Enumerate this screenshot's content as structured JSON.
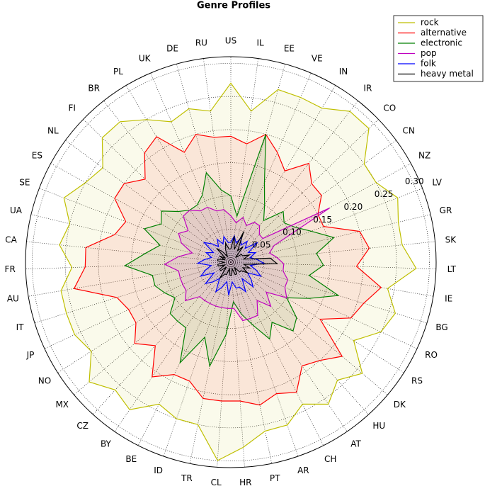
{
  "chart_data": {
    "type": "radar",
    "title": "Genre Profiles",
    "categories": [
      "US",
      "IL",
      "EE",
      "VE",
      "IN",
      "IR",
      "CO",
      "CN",
      "NZ",
      "LV",
      "GR",
      "SK",
      "LT",
      "IE",
      "BG",
      "RO",
      "RS",
      "DK",
      "HU",
      "AT",
      "CH",
      "AR",
      "PT",
      "HR",
      "CL",
      "TR",
      "ID",
      "BE",
      "BY",
      "CZ",
      "MX",
      "NO",
      "JP",
      "IT",
      "AU",
      "FR",
      "CA",
      "UA",
      "SE",
      "ES",
      "NL",
      "FI",
      "BR",
      "PL",
      "UK",
      "DE",
      "RU"
    ],
    "series": [
      {
        "name": "rock",
        "color": "#bfbf00",
        "values": [
          0.27,
          0.23,
          0.27,
          0.27,
          0.27,
          0.29,
          0.29,
          0.25,
          0.25,
          0.27,
          0.26,
          0.26,
          0.28,
          0.24,
          0.26,
          0.25,
          0.22,
          0.26,
          0.24,
          0.26,
          0.24,
          0.26,
          0.26,
          0.28,
          0.3,
          0.25,
          0.25,
          0.24,
          0.27,
          0.26,
          0.28,
          0.25,
          0.26,
          0.26,
          0.26,
          0.24,
          0.26,
          0.25,
          0.27,
          0.25,
          0.24,
          0.27,
          0.27,
          0.25,
          0.23,
          0.24,
          0.23
        ]
      },
      {
        "name": "alternative",
        "color": "#ff0000",
        "values": [
          0.19,
          0.18,
          0.2,
          0.18,
          0.16,
          0.19,
          0.17,
          0.17,
          0.15,
          0.15,
          0.2,
          0.21,
          0.19,
          0.23,
          0.21,
          0.2,
          0.16,
          0.22,
          0.2,
          0.19,
          0.22,
          0.21,
          0.22,
          0.21,
          0.21,
          0.21,
          0.19,
          0.19,
          0.21,
          0.17,
          0.19,
          0.17,
          0.17,
          0.18,
          0.24,
          0.22,
          0.22,
          0.18,
          0.17,
          0.2,
          0.2,
          0.18,
          0.21,
          0.22,
          0.18,
          0.2,
          0.19
        ]
      },
      {
        "name": "electronic",
        "color": "#008000",
        "values": [
          0.1,
          0.07,
          0.2,
          0.13,
          0.1,
          0.08,
          0.11,
          0.1,
          0.11,
          0.13,
          0.16,
          0.13,
          0.14,
          0.12,
          0.17,
          0.13,
          0.1,
          0.13,
          0.14,
          0.11,
          0.13,
          0.1,
          0.08,
          0.06,
          0.11,
          0.16,
          0.12,
          0.17,
          0.12,
          0.12,
          0.12,
          0.1,
          0.11,
          0.12,
          0.12,
          0.16,
          0.13,
          0.11,
          0.14,
          0.12,
          0.13,
          0.11,
          0.1,
          0.1,
          0.11,
          0.14,
          0.11
        ]
      },
      {
        "name": "pop",
        "color": "#bf00bf",
        "values": [
          0.07,
          0.06,
          0.07,
          0.06,
          0.07,
          0.07,
          0.06,
          0.06,
          0.17,
          0.07,
          0.06,
          0.07,
          0.08,
          0.08,
          0.09,
          0.09,
          0.1,
          0.07,
          0.09,
          0.07,
          0.09,
          0.09,
          0.09,
          0.07,
          0.07,
          0.07,
          0.07,
          0.07,
          0.07,
          0.07,
          0.09,
          0.08,
          0.08,
          0.08,
          0.08,
          0.1,
          0.08,
          0.06,
          0.08,
          0.09,
          0.08,
          0.1,
          0.1,
          0.09,
          0.09,
          0.08,
          0.08
        ]
      },
      {
        "name": "folk",
        "color": "#0000ff",
        "values": [
          0.03,
          0.04,
          0.03,
          0.04,
          0.03,
          0.04,
          0.03,
          0.05,
          0.03,
          0.04,
          0.03,
          0.04,
          0.05,
          0.03,
          0.04,
          0.05,
          0.03,
          0.04,
          0.05,
          0.03,
          0.05,
          0.04,
          0.04,
          0.03,
          0.05,
          0.03,
          0.04,
          0.05,
          0.03,
          0.04,
          0.05,
          0.03,
          0.05,
          0.04,
          0.03,
          0.05,
          0.04,
          0.03,
          0.04,
          0.03,
          0.05,
          0.04,
          0.03,
          0.04,
          0.03,
          0.04,
          0.03
        ]
      },
      {
        "name": "heavy metal",
        "color": "#000000",
        "values": [
          0.02,
          0.04,
          0.02,
          0.05,
          0.02,
          0.03,
          0.01,
          0.02,
          0.02,
          0.03,
          0.02,
          0.06,
          0.07,
          0.02,
          0.03,
          0.02,
          0.03,
          0.02,
          0.02,
          0.01,
          0.02,
          0.02,
          0.01,
          0.02,
          0.02,
          0.01,
          0.02,
          0.02,
          0.03,
          0.01,
          0.02,
          0.02,
          0.01,
          0.02,
          0.02,
          0.01,
          0.02,
          0.02,
          0.01,
          0.02,
          0.01,
          0.03,
          0.02,
          0.01,
          0.02,
          0.03,
          0.02
        ]
      }
    ],
    "ylim": [
      0,
      0.31
    ],
    "yticks": [
      0.05,
      {
        "value": 0.1,
        "label": "0.10"
      },
      0.15,
      {
        "value": 0.2,
        "label": "0.20"
      },
      0.25,
      {
        "value": 0.3,
        "label": "0.30"
      }
    ],
    "grid": true,
    "legend": "upper right"
  }
}
